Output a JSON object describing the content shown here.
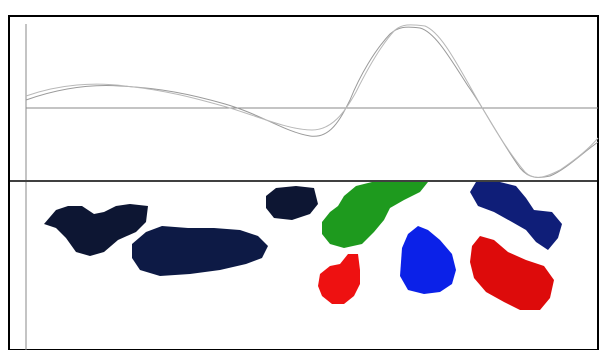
{
  "header": {
    "title": "",
    "corner_label": ""
  },
  "plot": {
    "x_ticks": [
      "",
      "",
      "",
      "",
      "",
      "",
      "",
      ""
    ],
    "y_ticks": [
      "",
      "",
      "",
      ""
    ],
    "line_color_1": "#9a9a9a",
    "line_color_2": "#b8b8b8"
  },
  "regions": [
    {
      "name": "region-dark-navy-1",
      "color": "#0d1633",
      "label": ""
    },
    {
      "name": "region-dark-navy-2",
      "color": "#0d1a45",
      "label": ""
    },
    {
      "name": "region-dark-navy-3",
      "color": "#0d1633",
      "label": ""
    },
    {
      "name": "region-green",
      "color": "#1e9a1e",
      "label": ""
    },
    {
      "name": "region-red-1",
      "color": "#ee1111",
      "label": ""
    },
    {
      "name": "region-blue",
      "color": "#0b21e8",
      "label": ""
    },
    {
      "name": "region-navy-4",
      "color": "#0f1e78",
      "label": ""
    },
    {
      "name": "region-red-2",
      "color": "#dd0b0b",
      "label": ""
    }
  ]
}
